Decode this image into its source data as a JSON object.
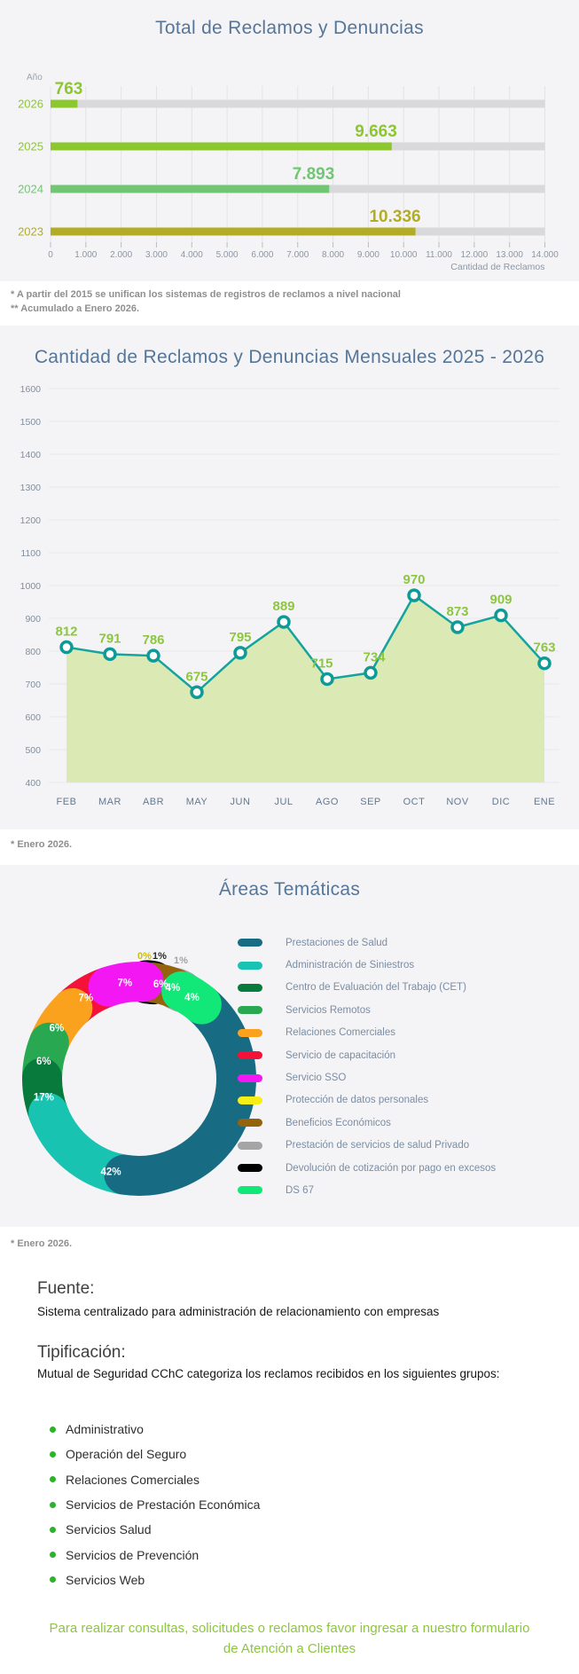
{
  "page": {
    "background": "#ffffff",
    "section_background": "#f4f4f6",
    "title_color": "#567699",
    "accent_green": "#8dc63f"
  },
  "chart_data": [
    {
      "type": "bar",
      "orientation": "horizontal",
      "title": "Total de Reclamos y Denuncias",
      "ylabel": "Año",
      "xlabel": "Cantidad de Reclamos",
      "categories": [
        "2026",
        "2025",
        "2024",
        "2023"
      ],
      "values": [
        763,
        9663,
        7893,
        10336
      ],
      "display_values": [
        "763",
        "9.663",
        "7.893",
        "10.336"
      ],
      "bar_colors": [
        "#8dc72e",
        "#8dc72e",
        "#71c673",
        "#b3ad25"
      ],
      "track_color": "#d9d9db",
      "xlim": [
        0,
        14000
      ],
      "x_ticks": [
        "0",
        "1.000",
        "2.000",
        "3.000",
        "4.000",
        "5.000",
        "6.000",
        "7.000",
        "8.000",
        "9.000",
        "10.000",
        "11.000",
        "12.000",
        "13.000",
        "14.000"
      ],
      "footnotes": [
        "* A partir del 2015 se unifican los sistemas de registros de reclamos a nivel nacional",
        "** Acumulado a Enero 2026."
      ]
    },
    {
      "type": "line",
      "title": "Cantidad de Reclamos y Denuncias Mensuales 2025 - 2026",
      "categories": [
        "FEB",
        "MAR",
        "ABR",
        "MAY",
        "JUN",
        "JUL",
        "AGO",
        "SEP",
        "OCT",
        "NOV",
        "DIC",
        "ENE"
      ],
      "values": [
        812,
        791,
        786,
        675,
        795,
        889,
        715,
        734,
        970,
        873,
        909,
        763
      ],
      "ylim": [
        400,
        1600
      ],
      "y_ticks": [
        "1600",
        "1500",
        "1400",
        "1300",
        "1200",
        "1100",
        "1000",
        "900",
        "800",
        "700",
        "600",
        "500",
        "400"
      ],
      "line_color": "#14a39d",
      "marker_color": "#0e9a96",
      "area_color": "#dbe9b4",
      "label_color": "#8dc63f",
      "grid": true,
      "footnote": "* Enero 2026."
    },
    {
      "type": "pie",
      "donut": true,
      "title": "Áreas Temáticas",
      "segments": [
        {
          "label": "Prestaciones de Salud",
          "pct": 42,
          "display": "42%",
          "color": "#176b83",
          "label_pos": "inside"
        },
        {
          "label": "Administración de Siniestros",
          "pct": 17,
          "display": "17%",
          "color": "#19c3b2",
          "label_pos": "inside"
        },
        {
          "label": "Centro de Evaluación del Trabajo (CET)",
          "pct": 6,
          "display": "6%",
          "color": "#087a3c",
          "label_pos": "inside"
        },
        {
          "label": "Servicios Remotos",
          "pct": 6,
          "display": "6%",
          "color": "#27a851",
          "label_pos": "inside"
        },
        {
          "label": "Relaciones Comerciales",
          "pct": 7,
          "display": "7%",
          "color": "#faa21e",
          "label_pos": "inside"
        },
        {
          "label": "Servicio de capacitación",
          "pct": 7,
          "display": "7%",
          "color": "#f51238",
          "label_pos": "inside"
        },
        {
          "label": "Servicio SSO",
          "pct": 6,
          "display": "6%",
          "color": "#f318f3",
          "label_pos": "inside"
        },
        {
          "label": "Protección de datos personales",
          "pct": 0,
          "display": "0%",
          "color": "#f7ee15",
          "label_pos": "outside"
        },
        {
          "label": "Beneficios Económicos",
          "pct": 4,
          "display": "4%",
          "color": "#95620d",
          "label_pos": "inside"
        },
        {
          "label": "Prestación de servicios de salud Privado",
          "pct": 1,
          "display": "1%",
          "color": "#a5a5a5",
          "label_pos": "outside"
        },
        {
          "label": "Devolución de cotización por pago en excesos",
          "pct": 1,
          "display": "1%",
          "color": "#000000",
          "label_pos": "outside"
        },
        {
          "label": "DS 67",
          "pct": 4,
          "display": "4%",
          "color": "#12e878",
          "label_pos": "inside"
        }
      ],
      "legend_position": "right",
      "footnote": "* Enero 2026."
    }
  ],
  "info": {
    "fuente_heading": "Fuente:",
    "fuente_body": "Sistema centralizado para administración de relacionamiento con empresas",
    "tipificacion_heading": "Tipificación:",
    "tipificacion_body": "Mutual de Seguridad CChC categoriza los reclamos recibidos en los siguientes grupos:",
    "groups": [
      "Administrativo",
      "Operación del Seguro",
      "Relaciones Comerciales",
      "Servicios de Prestación Económica",
      "Servicios Salud",
      "Servicios de Prevención",
      "Servicios Web"
    ],
    "footer_line1": "Para realizar consultas, solicitudes o reclamos favor ingresar a nuestro formulario",
    "footer_line2": "de Atención a Clientes"
  }
}
